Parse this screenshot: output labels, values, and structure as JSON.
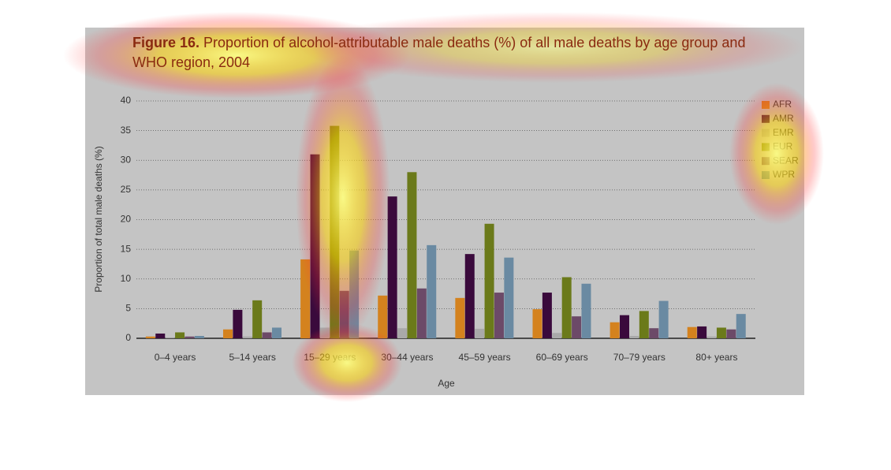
{
  "chart_data": {
    "type": "bar",
    "figure_label": "Figure 16.",
    "title": "Proportion of alcohol-attributable male deaths (%) of all male deaths by age group and WHO region, 2004",
    "x_label": "Age",
    "y_label": "Proportion of total male deaths (%)",
    "categories": [
      "0–4 years",
      "5–14 years",
      "15–29 years",
      "30–44 years",
      "45–59 years",
      "60–69 years",
      "70–79 years",
      "80+ years"
    ],
    "series": [
      {
        "name": "AFR",
        "color": "#d4821e",
        "values": [
          0.3,
          1.5,
          13.3,
          7.2,
          6.8,
          4.9,
          2.7,
          1.9
        ]
      },
      {
        "name": "AMR",
        "color": "#3a0a3c",
        "values": [
          0.8,
          4.8,
          31.0,
          23.9,
          14.2,
          7.7,
          3.9,
          2.0
        ]
      },
      {
        "name": "EMR",
        "color": "#a9a9a9",
        "values": [
          0.1,
          0.3,
          1.8,
          1.7,
          1.6,
          0.9,
          0.4,
          0.3
        ]
      },
      {
        "name": "EUR",
        "color": "#6b7a1a",
        "values": [
          1.0,
          6.4,
          35.8,
          28.0,
          19.3,
          10.3,
          4.6,
          1.8
        ]
      },
      {
        "name": "SEAR",
        "color": "#6c4a68",
        "values": [
          0.3,
          1.0,
          8.0,
          8.4,
          7.7,
          3.7,
          1.7,
          1.5
        ]
      },
      {
        "name": "WPR",
        "color": "#6a8aa2",
        "values": [
          0.4,
          1.8,
          14.8,
          15.7,
          13.6,
          9.2,
          6.3,
          4.1
        ]
      }
    ],
    "ylim": [
      0,
      40
    ],
    "yticks": [
      0,
      5,
      10,
      15,
      20,
      25,
      30,
      35,
      40
    ],
    "grid": true,
    "legend": "right"
  }
}
